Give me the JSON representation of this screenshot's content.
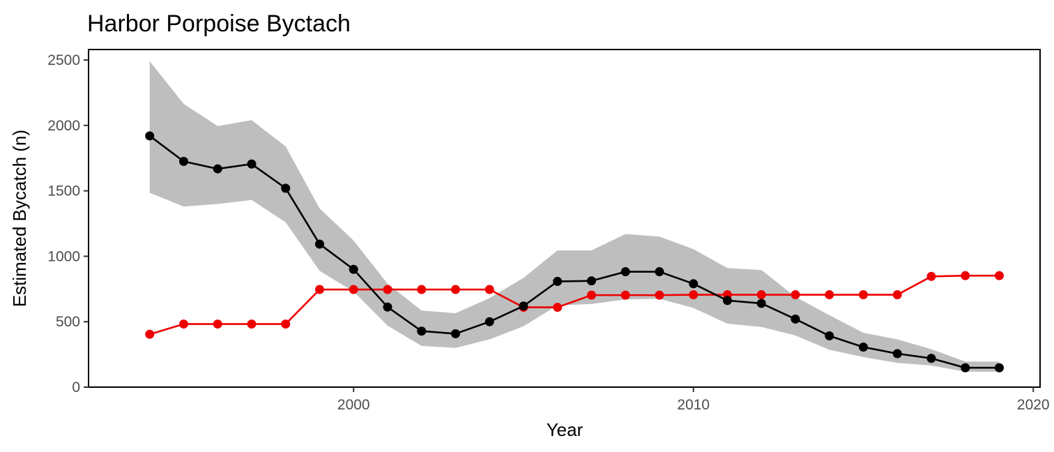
{
  "chart_data": {
    "type": "line",
    "title": "Harbor Porpoise Byctach",
    "xlabel": "Year",
    "ylabel": "Estimated Bycatch (n)",
    "xlim": [
      1992.2,
      2020.2
    ],
    "ylim": [
      0,
      2580
    ],
    "x_ticks": [
      2000,
      2010,
      2020
    ],
    "y_ticks": [
      0,
      500,
      1000,
      1500,
      2000,
      2500
    ],
    "grid": false,
    "legend": "none",
    "series": [
      {
        "color": "#000000",
        "x": [
          1994,
          1995,
          1996,
          1997,
          1998,
          1999,
          2000,
          2001,
          2002,
          2003,
          2004,
          2005,
          2006,
          2007,
          2008,
          2009,
          2010,
          2011,
          2012,
          2013,
          2014,
          2015,
          2016,
          2017,
          2018,
          2019
        ],
        "y": [
          1920,
          1725,
          1668,
          1705,
          1520,
          1093,
          900,
          612,
          428,
          408,
          500,
          620,
          808,
          812,
          882,
          882,
          790,
          662,
          640,
          520,
          392,
          306,
          256,
          220,
          148,
          148
        ],
        "lower": [
          1485,
          1380,
          1400,
          1430,
          1260,
          888,
          730,
          470,
          315,
          300,
          365,
          465,
          625,
          635,
          670,
          675,
          605,
          485,
          460,
          395,
          285,
          230,
          185,
          165,
          118,
          118
        ],
        "upper": [
          2490,
          2165,
          1995,
          2040,
          1840,
          1365,
          1120,
          790,
          585,
          565,
          680,
          835,
          1045,
          1045,
          1170,
          1150,
          1055,
          910,
          895,
          690,
          550,
          415,
          365,
          290,
          195,
          195
        ]
      },
      {
        "color": "#ee0000",
        "x": [
          1994,
          1995,
          1996,
          1997,
          1998,
          1999,
          2000,
          2001,
          2002,
          2003,
          2004,
          2005,
          2006,
          2007,
          2008,
          2009,
          2010,
          2011,
          2012,
          2013,
          2014,
          2015,
          2016,
          2017,
          2018,
          2019
        ],
        "y": [
          404,
          482,
          482,
          482,
          482,
          746,
          746,
          746,
          746,
          746,
          746,
          610,
          610,
          703,
          703,
          703,
          706,
          706,
          706,
          706,
          706,
          706,
          706,
          846,
          852,
          852
        ]
      }
    ],
    "ribbon_color": "#bebebe"
  }
}
